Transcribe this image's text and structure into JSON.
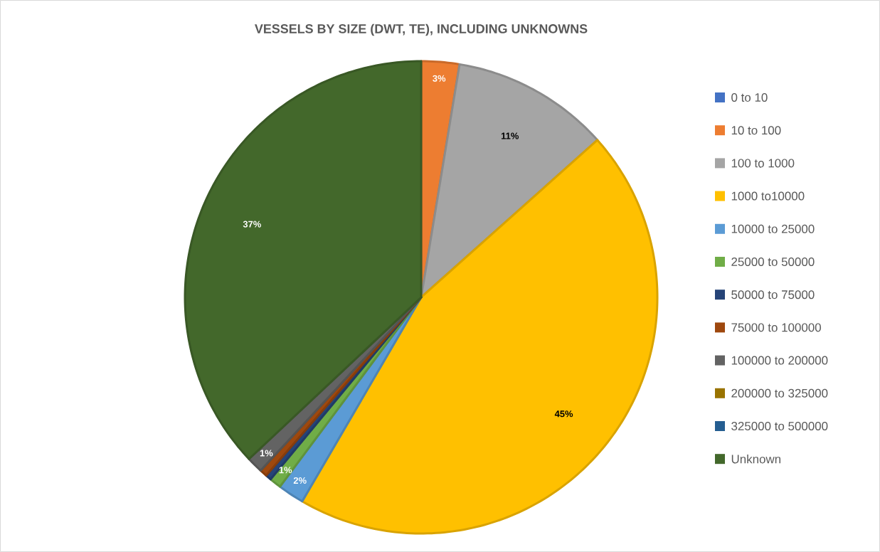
{
  "chart_data": {
    "type": "pie",
    "title": "VESSELS BY SIZE (DWT, TE), INCLUDING UNKNOWNS",
    "categories": [
      "0 to 10",
      "10 to 100",
      "100 to 1000",
      "1000 to10000",
      "10000 to 25000",
      "25000 to 50000",
      "50000 to 75000",
      "75000 to 100000",
      "100000 to 200000",
      "200000 to 325000",
      "325000 to 500000",
      "Unknown"
    ],
    "values": [
      0,
      2.6,
      10.8,
      45,
      1.8,
      0.8,
      0.4,
      0.5,
      1.1,
      0,
      0,
      37
    ],
    "value_labels": [
      null,
      "3%",
      "11%",
      "45%",
      "2%",
      "1%",
      null,
      null,
      "1%",
      null,
      null,
      "37%"
    ],
    "colors": [
      "#4472c4",
      "#ed7d31",
      "#a5a5a5",
      "#ffc000",
      "#5b9bd5",
      "#70ad47",
      "#264478",
      "#9e480e",
      "#636363",
      "#997300",
      "#255e91",
      "#43682b"
    ],
    "legend": "right"
  }
}
